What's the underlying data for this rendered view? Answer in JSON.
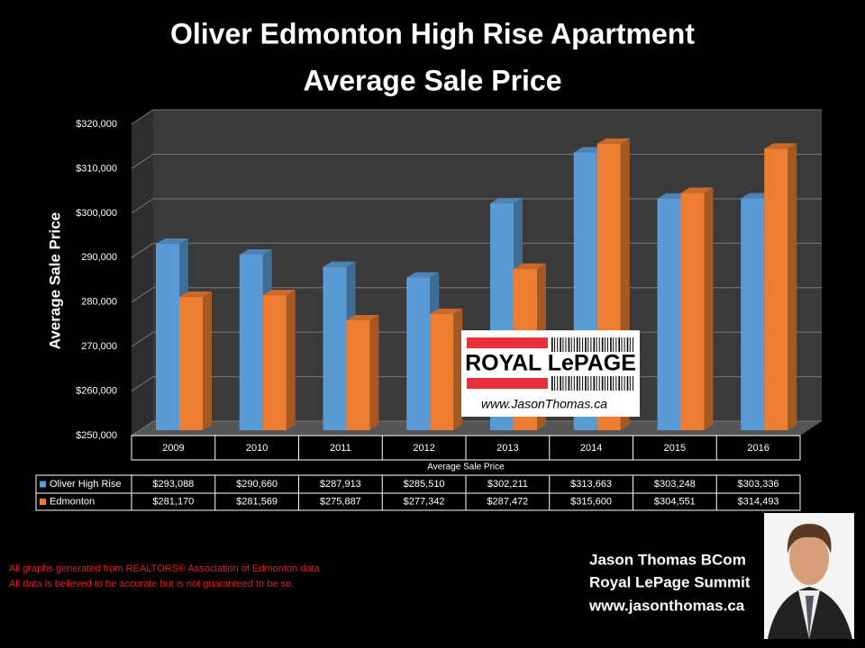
{
  "chart_data": {
    "type": "bar3d",
    "title": "Oliver Edmonton High Rise Apartment",
    "subtitle": "Average Sale Price",
    "y_label": "Average Sale Price",
    "x_label": "Average Sale Price",
    "categories": [
      "2009",
      "2010",
      "2011",
      "2012",
      "2013",
      "2014",
      "2015",
      "2016"
    ],
    "series": [
      {
        "name": "Oliver High Rise",
        "color": "#5b9bd5",
        "values": [
          293088,
          290660,
          287913,
          285510,
          302211,
          313663,
          303248,
          303336
        ],
        "value_labels": [
          "$293,088",
          "$290,660",
          "$287,913",
          "$285,510",
          "$302,211",
          "$313,663",
          "$303,248",
          "$303,336"
        ]
      },
      {
        "name": "Edmonton",
        "color": "#ed7d31",
        "values": [
          281170,
          281569,
          275887,
          277342,
          287472,
          315600,
          304551,
          314493
        ],
        "value_labels": [
          "$281,170",
          "$281,569",
          "$275,887",
          "$277,342",
          "$287,472",
          "$315,600",
          "$304,551",
          "$314,493"
        ]
      }
    ],
    "ylim": [
      250000,
      320000
    ],
    "yticks": [
      {
        "value": 250000,
        "label": "$250,000"
      },
      {
        "value": 260000,
        "label": "$260,000"
      },
      {
        "value": 270000,
        "label": "270,000"
      },
      {
        "value": 280000,
        "label": "280,000"
      },
      {
        "value": 290000,
        "label": "290,000"
      },
      {
        "value": 300000,
        "label": "$300,000"
      },
      {
        "value": 310000,
        "label": "$310,000"
      },
      {
        "value": 320000,
        "label": "$320,000"
      }
    ],
    "grid": true
  },
  "logo": {
    "name": "ROYAL LePAGE",
    "url": "www.JasonThomas.ca"
  },
  "notes": [
    "All graphs generated from REALTORS® Association of Edmonton data",
    "All data is believed to be accurate but is not guaranteed to be so."
  ],
  "signature": [
    "Jason Thomas BCom",
    "Royal LePage Summit",
    "www.jasonthomas.ca"
  ]
}
